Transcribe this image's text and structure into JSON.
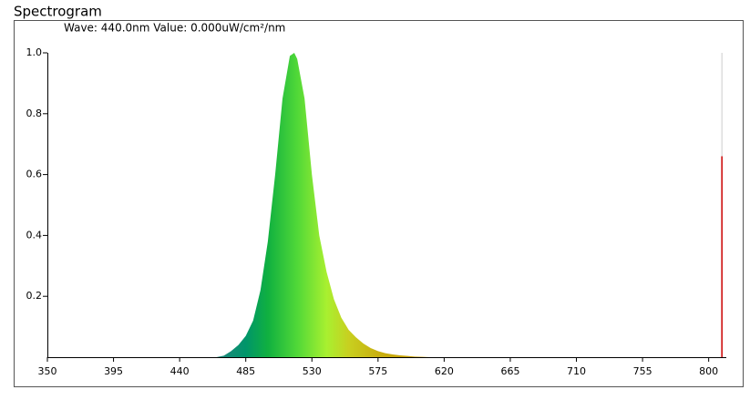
{
  "chart_data": {
    "type": "area",
    "title": "Spectrogram",
    "readout": "Wave: 440.0nm Value: 0.000uW/cm²/nm",
    "x": [
      465,
      470,
      475,
      480,
      485,
      490,
      495,
      500,
      505,
      510,
      515,
      518,
      520,
      525,
      530,
      535,
      540,
      545,
      550,
      555,
      560,
      565,
      570,
      575,
      580,
      585,
      590,
      595,
      600,
      605,
      610
    ],
    "values": [
      0,
      0.005,
      0.02,
      0.04,
      0.07,
      0.12,
      0.22,
      0.38,
      0.6,
      0.85,
      0.99,
      1.0,
      0.98,
      0.85,
      0.6,
      0.4,
      0.28,
      0.19,
      0.13,
      0.09,
      0.065,
      0.045,
      0.03,
      0.02,
      0.013,
      0.009,
      0.006,
      0.004,
      0.002,
      0.001,
      0
    ],
    "color_stops": [
      {
        "x": 470,
        "color": "#1a8a7a"
      },
      {
        "x": 485,
        "color": "#00956a"
      },
      {
        "x": 500,
        "color": "#10b040"
      },
      {
        "x": 520,
        "color": "#50d838"
      },
      {
        "x": 540,
        "color": "#a8f030"
      },
      {
        "x": 555,
        "color": "#c8d020"
      },
      {
        "x": 575,
        "color": "#c8b010"
      },
      {
        "x": 610,
        "color": "#c89800"
      }
    ],
    "marker": {
      "x": 809,
      "value": 0.66,
      "color": "#cc0000"
    },
    "xlim": [
      350,
      812
    ],
    "xticks": [
      350,
      395,
      440,
      485,
      530,
      575,
      620,
      665,
      710,
      755,
      800
    ],
    "ylim": [
      0,
      1
    ],
    "yticks": [
      0.2,
      0.4,
      0.6,
      0.8,
      {
        "value": 1,
        "label": "1.0"
      }
    ]
  }
}
